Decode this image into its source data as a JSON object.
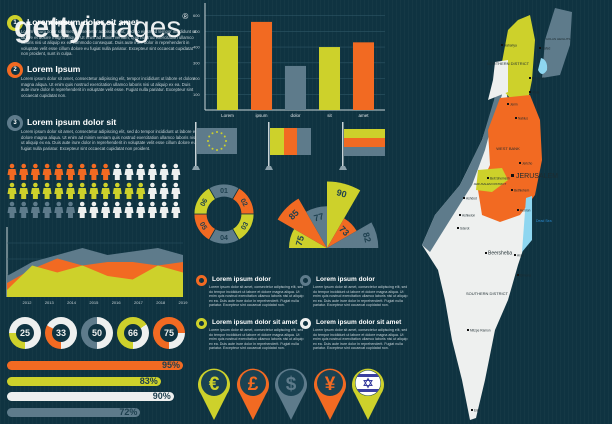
{
  "watermark": {
    "logo_text": "gettyimages"
  },
  "colors": {
    "background": "#0f3341",
    "yellow": "#cdd12b",
    "orange": "#f26a22",
    "gray": "#5e7b8b",
    "white": "#eef0ef"
  },
  "sections": [
    {
      "number": "1",
      "title": "Lorem ipsum dolor sit amet",
      "body": "Lorem ipsum dolor sit amet, consectetur adipiscing elit, sed do eiusmod tempor incididunt ut labore et dolore magna aliqua. Ut enim ad minim veniam, quis nostrud exercitation ullamco laboris nisi ut aliquip ex ea commodo consequat. Duis aute irure dolor in reprehenderit in voluptate velit esse cillum dolore eu fugiat nulla pariatur. Excepteur sint occaecat cupidatat non proident, sunt in culpa."
    },
    {
      "number": "2",
      "title": "Lorem Ipsum",
      "body": "Lorem ipsum dolor sit amet, consectetur adipiscing elit, tempor incididunt ut labore et dolore magna aliqua. Ut enim quis nostrud exercitation ullamco laboris nisi ut aliquip ex ea. Duis aute irure dolor in reprehenderit in voluptate velit esse. Fugiat nulla pariatur. Excepteur sint occaecat cupidatat non."
    },
    {
      "number": "3",
      "title": "Lorem ipsum dolor sit",
      "body": "Lorem ipsum dolor sit amet, consectetur adipiscing elit, sed do tempor incididunt ut labore et dolore magna aliqua. Ut enim ad minim veniam quis nostrud exercitation ullamco laboris nisi ut aliquip ex ea. Duis aute irure dolor in reprehenderit in voluptate velit esse cillum dolore eu fugiat nulla pariatur. Excepteur sint occaecat cupidatat non proident."
    }
  ],
  "people_rows": [
    {
      "color": "orange",
      "filled": 9,
      "total": 15
    },
    {
      "color": "yellow",
      "filled": 12,
      "total": 15
    },
    {
      "color": "gray",
      "filled": 6,
      "total": 15
    }
  ],
  "chart_data": [
    {
      "type": "bar",
      "categories": [
        "Lorem",
        "ipsum",
        "dolor",
        "sit",
        "amet"
      ],
      "values": [
        470,
        560,
        280,
        400,
        430
      ],
      "colors": [
        "yellow",
        "orange",
        "gray",
        "yellow",
        "orange"
      ],
      "yticks": [
        100,
        200,
        300,
        400,
        500,
        600
      ],
      "ylim": [
        0,
        680
      ],
      "grid": true
    },
    {
      "type": "area",
      "x": [
        "2012",
        "2013",
        "2014",
        "2015",
        "2016",
        "2017",
        "2018",
        "2019"
      ],
      "series": [
        {
          "color": "gray",
          "values": [
            3,
            5,
            6,
            7,
            6,
            6.5,
            7,
            6
          ]
        },
        {
          "color": "orange",
          "values": [
            2,
            4,
            5.5,
            4.5,
            5,
            5,
            4.5,
            5
          ]
        },
        {
          "color": "yellow",
          "values": [
            1,
            4.5,
            3.5,
            4.5,
            3,
            2.5,
            4.5,
            3.5
          ]
        }
      ],
      "ylim": [
        0,
        10
      ],
      "grid": true
    },
    {
      "type": "donut",
      "values": [
        25,
        33,
        50,
        66,
        75
      ],
      "colors": [
        "yellow",
        "orange",
        "gray",
        "yellow",
        "orange"
      ]
    },
    {
      "type": "bar",
      "orientation": "horizontal",
      "values": [
        95,
        83,
        90,
        72
      ],
      "labels": [
        "95%",
        "83%",
        "90%",
        "72%"
      ],
      "colors": [
        "orange",
        "yellow",
        "white",
        "gray"
      ]
    },
    {
      "type": "pie",
      "segments": [
        "01",
        "02",
        "03",
        "04",
        "05",
        "06"
      ],
      "colors": [
        "gray",
        "orange",
        "yellow",
        "gray",
        "orange",
        "yellow"
      ]
    },
    {
      "type": "polar",
      "values": [
        75,
        85,
        77,
        90,
        73,
        82
      ],
      "colors": [
        "yellow",
        "orange",
        "gray",
        "yellow",
        "orange",
        "gray"
      ]
    }
  ],
  "flags": [
    "eu-flag",
    "vertical-tricolor-flag",
    "horizontal-tricolor-flag"
  ],
  "text_blocks": [
    {
      "title": "Lorem ipsum dolor",
      "ring": "orange",
      "body": "Lorem ipsum dolor sit amet, consectetur adipiscing elit, sed do tempor incididunt ut labore et dolore magna aliqua. Ut enim quis nostrud exercitation ullamco laboris nisi ut aliquip ex ea. Duis aute irure dolor in reprehenderit. Fugiat nulla pariatur. Excepteur sint occaecat cupidatat non."
    },
    {
      "title": "Lorem ipsum dolor",
      "ring": "gray",
      "body": "Lorem ipsum dolor sit amet, consectetur adipiscing elit, sed do tempor incididunt ut labore et dolore magna aliqua. Ut enim quis nostrud exercitation ullamco laboris nisi ut aliquip ex ea. Duis aute irure dolor in reprehenderit. Fugiat nulla pariatur. Excepteur sint occaecat cupidatat non."
    },
    {
      "title": "Lorem ipsum dolor sit amet",
      "ring": "yellow",
      "body": "Lorem ipsum dolor sit amet, consectetur adipiscing elit, sed do tempor incididunt ut labore et dolore magna aliqua. Ut enim quis nostrud exercitation ullamco laboris nisi ut aliquip ex ea. Duis aute irure dolor in reprehenderit. Fugiat nulla pariatur. Excepteur sint occaecat cupidatat non."
    },
    {
      "title": "Lorem ipsum dolor sit amet",
      "ring": "white",
      "body": "Lorem ipsum dolor sit amet, consectetur adipiscing elit, sed do tempor incididunt ut labore et dolore magna aliqua. Ut enim quis nostrud exercitation ullamco laboris nisi ut aliquip ex ea. Duis aute irure dolor in reprehenderit. Fugiat nulla pariatur. Excepteur sint occaecat cupidatat non."
    }
  ],
  "pins": [
    {
      "icon": "euro-icon",
      "symbol": "€",
      "color": "yellow"
    },
    {
      "icon": "pound-icon",
      "symbol": "£",
      "color": "orange"
    },
    {
      "icon": "dollar-icon",
      "symbol": "$",
      "color": "gray"
    },
    {
      "icon": "yen-icon",
      "symbol": "¥",
      "color": "orange"
    },
    {
      "icon": "israel-flag-icon",
      "symbol": "",
      "color": "yellow"
    }
  ],
  "map": {
    "regions": [
      "NORTHERN DISTRICT",
      "WEST BANK",
      "JERUSALEM DISTRICT",
      "SOUTHERN DISTRICT",
      "GOLAN HEIGHTS"
    ],
    "capital": "JERUSALEM",
    "cities": [
      "Safed",
      "Nahariya",
      "Nazareth",
      "Afula",
      "Jenin",
      "Nablus",
      "Jericho",
      "Bethlehem",
      "Hebron",
      "Beit Shemesh",
      "Beersheba",
      "Arad",
      "Dimona",
      "Ashdod",
      "Ashkelon",
      "Sderot",
      "Mitzpe Ramon",
      "Eilat"
    ],
    "waters": [
      "Dead Sea"
    ]
  }
}
